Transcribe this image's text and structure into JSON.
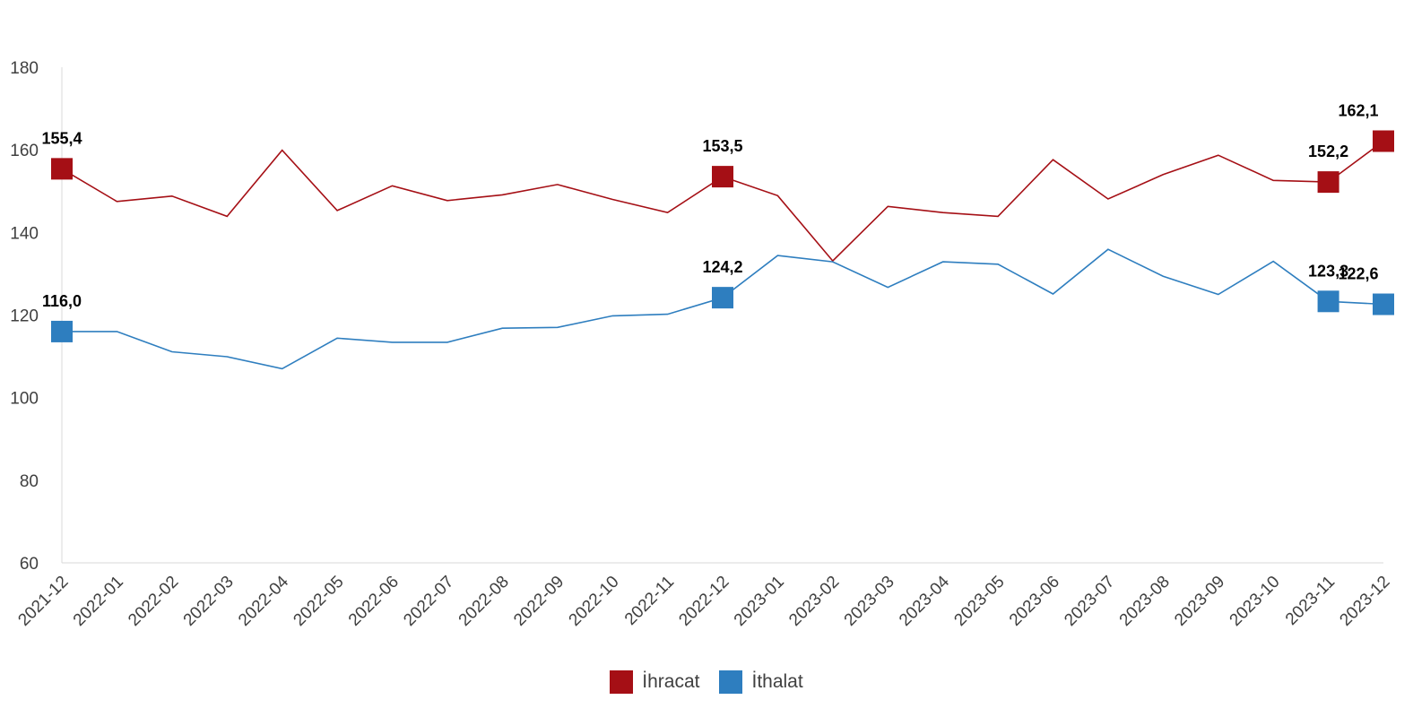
{
  "chart_data": {
    "type": "line",
    "ylim": [
      60,
      180
    ],
    "yticks": [
      60,
      80,
      100,
      120,
      140,
      160,
      180
    ],
    "grid": false,
    "legend_position": "bottom-center",
    "categories": [
      "2021-12",
      "2022-01",
      "2022-02",
      "2022-03",
      "2022-04",
      "2022-05",
      "2022-06",
      "2022-07",
      "2022-08",
      "2022-09",
      "2022-10",
      "2022-11",
      "2022-12",
      "2023-01",
      "2023-02",
      "2023-03",
      "2023-04",
      "2023-05",
      "2023-06",
      "2023-07",
      "2023-08",
      "2023-09",
      "2023-10",
      "2023-11",
      "2023-12"
    ],
    "series": [
      {
        "name": "İhracat",
        "color": "#A50F15",
        "values": [
          155.4,
          147.5,
          148.8,
          143.9,
          159.9,
          145.3,
          151.3,
          147.7,
          149.1,
          151.6,
          148.0,
          144.8,
          153.5,
          148.9,
          133.1,
          146.3,
          144.8,
          143.9,
          157.6,
          148.1,
          154.0,
          158.7,
          152.6,
          152.2,
          162.1
        ],
        "data_labels": [
          {
            "index": 0,
            "text": "155,4"
          },
          {
            "index": 12,
            "text": "153,5"
          },
          {
            "index": 23,
            "text": "152,2"
          },
          {
            "index": 24,
            "text": "162,1"
          }
        ]
      },
      {
        "name": "İthalat",
        "color": "#2E7EBF",
        "values": [
          116.0,
          116.0,
          111.1,
          109.9,
          107.0,
          114.4,
          113.4,
          113.4,
          116.8,
          117.0,
          119.8,
          120.2,
          124.2,
          134.4,
          132.9,
          126.7,
          132.9,
          132.3,
          125.1,
          135.9,
          129.4,
          125.0,
          133.0,
          123.3,
          122.6
        ],
        "data_labels": [
          {
            "index": 0,
            "text": "116,0"
          },
          {
            "index": 12,
            "text": "124,2"
          },
          {
            "index": 23,
            "text": "123,3"
          },
          {
            "index": 24,
            "text": "122,6"
          }
        ]
      }
    ]
  }
}
